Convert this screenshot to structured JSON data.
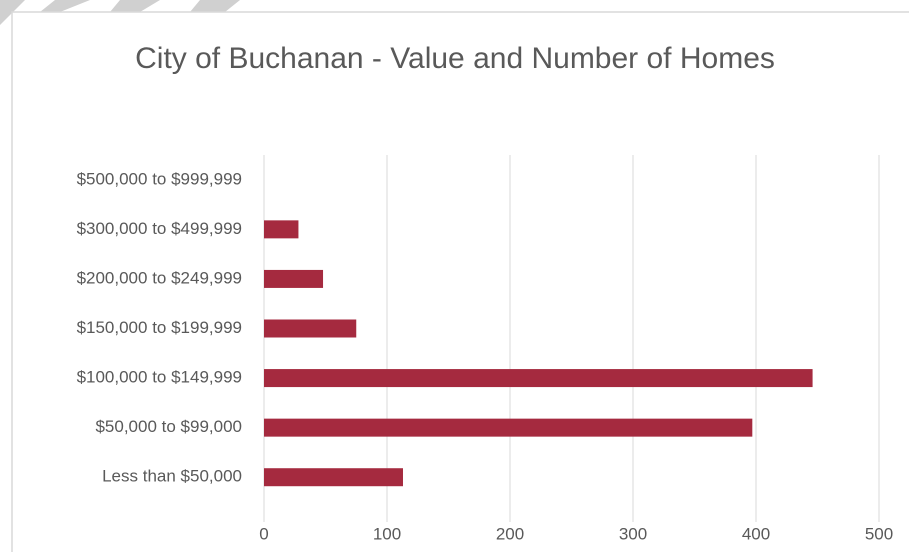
{
  "chart_data": {
    "type": "bar",
    "orientation": "horizontal",
    "title": "City of Buchanan - Value and Number of Homes",
    "categories": [
      "Less than $50,000",
      "$50,000 to $99,000",
      "$100,000 to $149,999",
      "$150,000 to $199,999",
      "$200,000 to $249,999",
      "$300,000 to $499,999",
      "$500,000 to $999,999"
    ],
    "values": [
      113,
      397,
      446,
      75,
      48,
      28,
      0
    ],
    "color": "#a52a3f",
    "xlim": [
      0,
      500
    ],
    "xticks": [
      0,
      100,
      200,
      300,
      400,
      500
    ],
    "grid": true
  }
}
